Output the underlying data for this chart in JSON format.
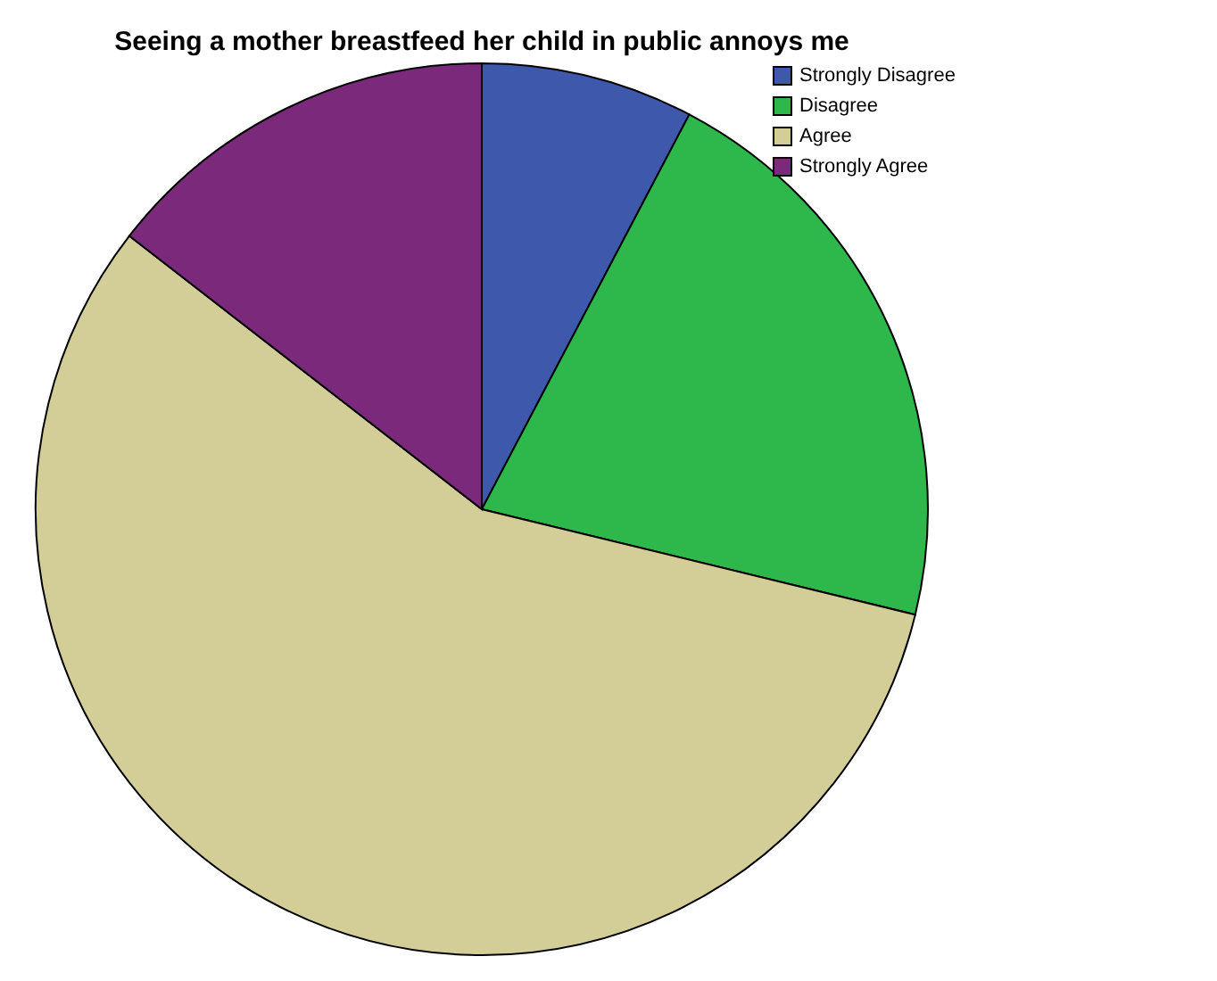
{
  "chart_data": {
    "type": "pie",
    "title": "Seeing a mother breastfeed her child in public annoys me",
    "categories": [
      "Strongly Disagree",
      "Disagree",
      "Agree",
      "Strongly Agree"
    ],
    "values": [
      7.7,
      21.1,
      56.7,
      14.5
    ],
    "colors": [
      "#3e58ac",
      "#2eb84b",
      "#d3ce97",
      "#7b2a7b"
    ],
    "legend": "top right"
  }
}
